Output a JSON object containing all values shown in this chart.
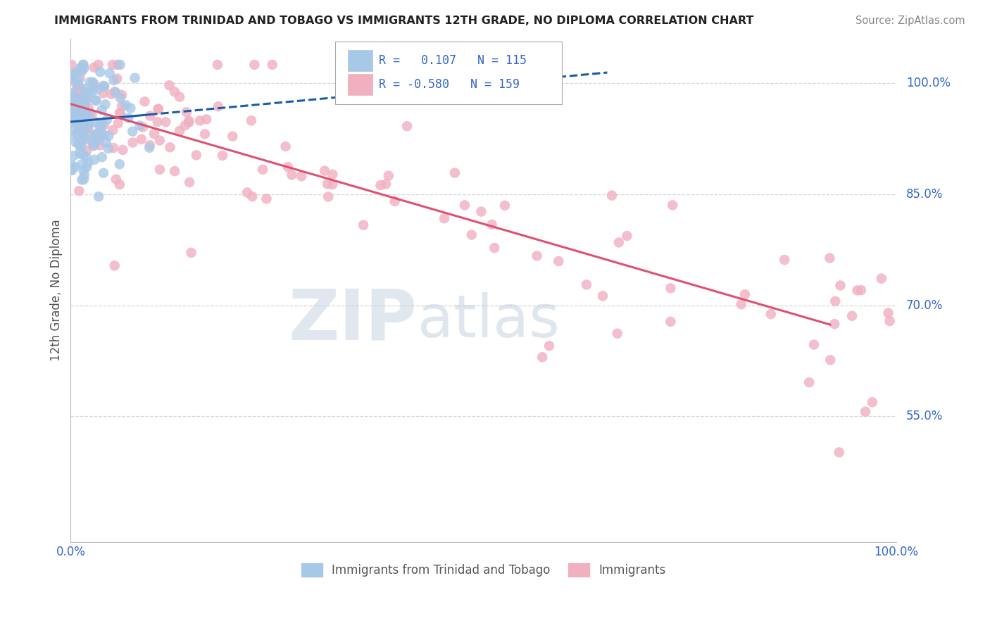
{
  "title": "IMMIGRANTS FROM TRINIDAD AND TOBAGO VS IMMIGRANTS 12TH GRADE, NO DIPLOMA CORRELATION CHART",
  "source": "Source: ZipAtlas.com",
  "ylabel": "12th Grade, No Diploma",
  "legend_blue_r": "0.107",
  "legend_blue_n": "115",
  "legend_pink_r": "-0.580",
  "legend_pink_n": "159",
  "blue_color": "#a8c8e8",
  "pink_color": "#f0b0c0",
  "blue_line_color": "#1a5ca8",
  "pink_line_color": "#e05070",
  "xmin": 0.0,
  "xmax": 1.0,
  "ymin": 0.38,
  "ymax": 1.06,
  "ytick_positions": [
    0.55,
    0.7,
    0.85,
    1.0
  ],
  "ytick_labels": [
    "55.0%",
    "70.0%",
    "85.0%",
    "100.0%"
  ],
  "background_color": "#ffffff",
  "grid_color": "#cccccc"
}
